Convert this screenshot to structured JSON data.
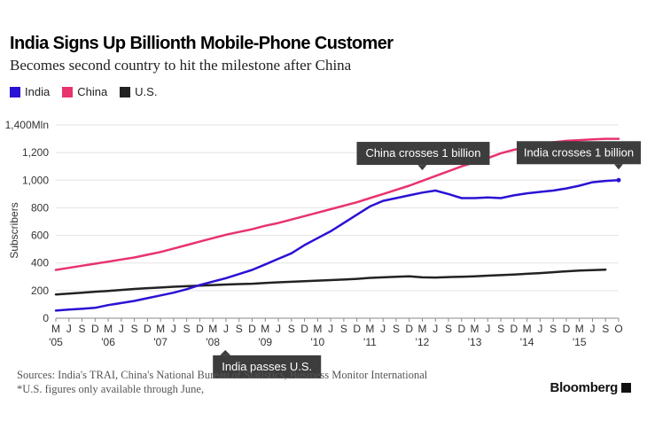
{
  "chart_data": {
    "type": "line",
    "title": "India Signs Up Billionth Mobile-Phone Customer",
    "subtitle": "Becomes second country to hit the milestone after China",
    "ylabel": "Subscribers",
    "xlabel": "",
    "ylim": [
      0,
      1400
    ],
    "y_ticks": [
      "0",
      "200",
      "400",
      "600",
      "800",
      "1,000",
      "1,200",
      "1,400Mln"
    ],
    "y_tick_values": [
      0,
      200,
      400,
      600,
      800,
      1000,
      1200,
      1400
    ],
    "x_month_labels": [
      "M",
      "J",
      "S",
      "D",
      "M",
      "J",
      "S",
      "D",
      "M",
      "J",
      "S",
      "D",
      "M",
      "J",
      "S",
      "D",
      "M",
      "J",
      "S",
      "D",
      "M",
      "J",
      "S",
      "D",
      "M",
      "J",
      "S",
      "D",
      "M",
      "J",
      "S",
      "D",
      "M",
      "J",
      "S",
      "D",
      "M",
      "J",
      "S",
      "D",
      "M",
      "J",
      "S",
      "O"
    ],
    "x_year_labels": [
      {
        "label": "'05",
        "index": 0
      },
      {
        "label": "'06",
        "index": 4
      },
      {
        "label": "'07",
        "index": 8
      },
      {
        "label": "'08",
        "index": 12
      },
      {
        "label": "'09",
        "index": 16
      },
      {
        "label": "'10",
        "index": 20
      },
      {
        "label": "'11",
        "index": 24
      },
      {
        "label": "'12",
        "index": 28
      },
      {
        "label": "'13",
        "index": 32
      },
      {
        "label": "'14",
        "index": 36
      },
      {
        "label": "'15",
        "index": 40
      }
    ],
    "x_range": [
      0,
      43
    ],
    "legend": [
      "India",
      "China",
      "U.S."
    ],
    "series": [
      {
        "name": "India",
        "color": "#2a12d4",
        "x": [
          0,
          1,
          2,
          3,
          4,
          5,
          6,
          7,
          8,
          9,
          10,
          11,
          12,
          13,
          14,
          15,
          16,
          17,
          18,
          19,
          20,
          21,
          22,
          23,
          24,
          25,
          26,
          27,
          28,
          29,
          30,
          31,
          32,
          33,
          34,
          35,
          36,
          37,
          38,
          39,
          40,
          41,
          42,
          43
        ],
        "values": [
          55,
          62,
          68,
          75,
          95,
          110,
          125,
          145,
          165,
          185,
          210,
          240,
          265,
          290,
          320,
          350,
          390,
          430,
          470,
          530,
          580,
          630,
          690,
          750,
          810,
          850,
          870,
          890,
          910,
          925,
          900,
          870,
          870,
          875,
          870,
          890,
          905,
          915,
          925,
          940,
          960,
          985,
          995,
          1000
        ]
      },
      {
        "name": "China",
        "color": "#e8336e",
        "x": [
          0,
          1,
          2,
          3,
          4,
          5,
          6,
          7,
          8,
          9,
          10,
          11,
          12,
          13,
          14,
          15,
          16,
          17,
          18,
          19,
          20,
          21,
          22,
          23,
          24,
          25,
          26,
          27,
          28,
          29,
          30,
          31,
          32,
          33,
          34,
          35,
          36,
          37,
          38,
          39,
          40,
          41,
          42,
          43
        ],
        "values": [
          350,
          365,
          380,
          395,
          410,
          425,
          440,
          460,
          480,
          505,
          530,
          555,
          580,
          605,
          625,
          645,
          670,
          690,
          715,
          740,
          765,
          790,
          815,
          840,
          870,
          900,
          930,
          960,
          995,
          1030,
          1065,
          1100,
          1130,
          1160,
          1195,
          1220,
          1240,
          1260,
          1275,
          1285,
          1290,
          1295,
          1300,
          1300
        ]
      },
      {
        "name": "U.S.",
        "color": "#222222",
        "x": [
          0,
          1,
          2,
          3,
          4,
          5,
          6,
          7,
          8,
          9,
          10,
          11,
          12,
          13,
          14,
          15,
          16,
          17,
          18,
          19,
          20,
          21,
          22,
          23,
          24,
          25,
          26,
          27,
          28,
          29,
          30,
          31,
          32,
          33,
          34,
          35,
          36,
          37,
          38,
          39,
          40,
          41,
          42
        ],
        "values": [
          172,
          178,
          185,
          192,
          198,
          205,
          212,
          218,
          222,
          228,
          232,
          236,
          240,
          244,
          247,
          250,
          255,
          260,
          264,
          268,
          272,
          276,
          280,
          285,
          292,
          296,
          300,
          304,
          296,
          295,
          298,
          300,
          303,
          308,
          312,
          316,
          322,
          327,
          333,
          340,
          345,
          348,
          352
        ]
      }
    ],
    "annotations": [
      {
        "text": "China crosses 1 billion",
        "series": "China",
        "x": 28,
        "y": 995
      },
      {
        "text": "India crosses 1 billion",
        "series": "India",
        "x": 43,
        "y": 1000
      },
      {
        "text": "India passes U.S.",
        "series": "India",
        "x": 12,
        "y": 245
      }
    ]
  },
  "footer": {
    "sources": "Sources: India's TRAI, China's National Bureau of Statistics, Business Monitor International",
    "note": "*U.S. figures only available through June,"
  },
  "brand": {
    "name": "Bloomberg"
  }
}
